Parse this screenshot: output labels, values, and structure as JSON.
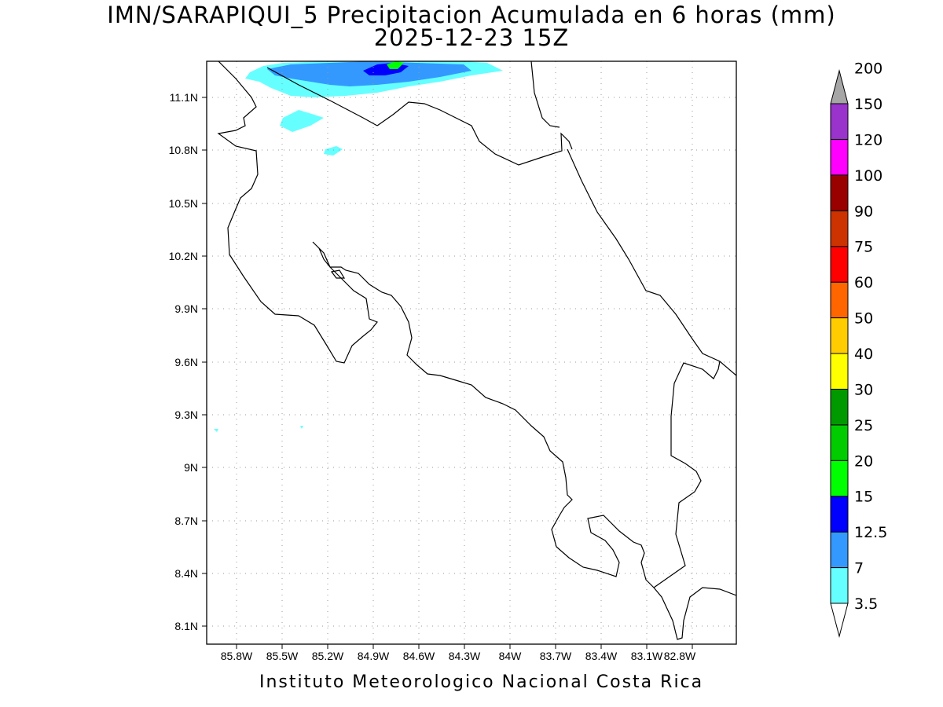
{
  "map": {
    "title_line1": "IMN/SARAPIQUI_5 Precipitacion Acumulada en 6 horas (mm)",
    "title_line2": "2025-12-23 15Z",
    "footer": "Instituto Meteorologico Nacional Costa Rica",
    "lat_labels": [
      "11.1N",
      "10.8N",
      "10.5N",
      "10.2N",
      "9.9N",
      "9.6N",
      "9.3N",
      "9N",
      "8.7N",
      "8.4N",
      "8.1N"
    ],
    "lon_labels": [
      "85.8W",
      "85.5W",
      "85.2W",
      "84.9W",
      "84.6W",
      "84.3W",
      "84W",
      "83.7W",
      "83.4W",
      "83.1W",
      "82.8W"
    ],
    "colorbar": {
      "bands": [
        {
          "label": "3.5",
          "color": "#66ffff"
        },
        {
          "label": "7",
          "color": "#3399ff"
        },
        {
          "label": "12.5",
          "color": "#0000ff"
        },
        {
          "label": "15",
          "color": "#00ff00"
        },
        {
          "label": "20",
          "color": "#00cc00"
        },
        {
          "label": "25",
          "color": "#009900"
        },
        {
          "label": "30",
          "color": "#ffff00"
        },
        {
          "label": "40",
          "color": "#ffcc00"
        },
        {
          "label": "50",
          "color": "#ff6600"
        },
        {
          "label": "60",
          "color": "#ff0000"
        },
        {
          "label": "75",
          "color": "#cc3300"
        },
        {
          "label": "90",
          "color": "#990000"
        },
        {
          "label": "100",
          "color": "#ff00ff"
        },
        {
          "label": "120",
          "color": "#9933cc"
        },
        {
          "label": "150",
          "color": "#f2f2f2"
        },
        {
          "label": "200",
          "color": "#a6a6a6"
        }
      ]
    }
  }
}
